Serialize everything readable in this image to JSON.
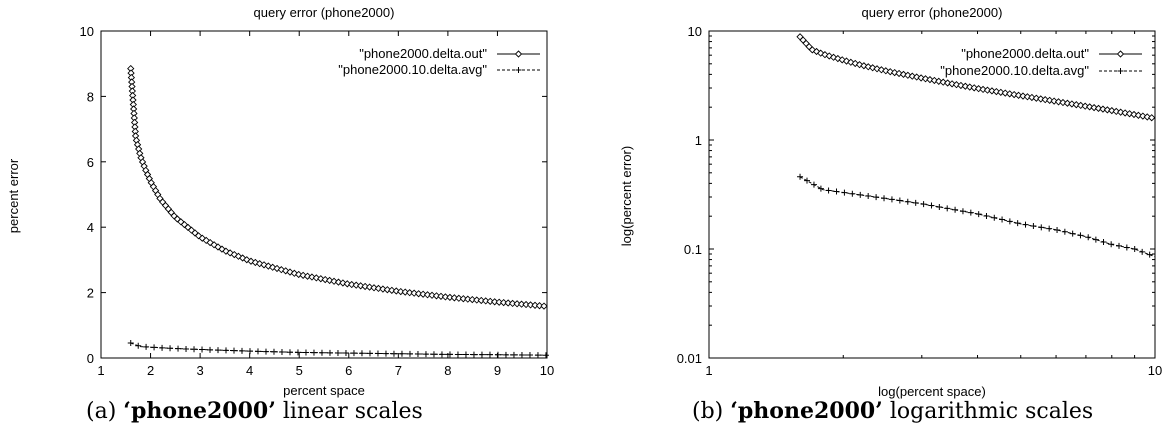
{
  "chart_data": [
    {
      "type": "line",
      "title": "query error (phone2000)",
      "xlabel": "percent space",
      "ylabel": "percent error",
      "xlim": [
        1,
        10
      ],
      "ylim": [
        0,
        10
      ],
      "xscale": "linear",
      "yscale": "linear",
      "xticks": [
        1,
        2,
        3,
        4,
        5,
        6,
        7,
        8,
        9,
        10
      ],
      "yticks": [
        0,
        2,
        4,
        6,
        8,
        10
      ],
      "legend": "top-right",
      "grid": false,
      "series": [
        {
          "name": "\"phone2000.delta.out\"",
          "marker": "diamond",
          "style": "solid",
          "x": [
            1.6,
            1.7,
            1.8,
            1.9,
            2.0,
            2.2,
            2.5,
            3.0,
            3.5,
            4.0,
            5.0,
            6.0,
            7.0,
            8.0,
            9.0,
            10.0
          ],
          "y": [
            8.85,
            6.75,
            6.15,
            5.75,
            5.4,
            4.85,
            4.3,
            3.7,
            3.28,
            2.97,
            2.55,
            2.26,
            2.04,
            1.86,
            1.71,
            1.58
          ]
        },
        {
          "name": "\"phone2000.10.delta.avg\"",
          "marker": "plus",
          "style": "dashed",
          "x": [
            1.6,
            1.7,
            1.8,
            2.0,
            2.5,
            3.0,
            4.0,
            5.0,
            6.0,
            7.0,
            8.0,
            9.0,
            10.0
          ],
          "y": [
            0.46,
            0.4,
            0.35,
            0.33,
            0.29,
            0.26,
            0.21,
            0.17,
            0.15,
            0.13,
            0.11,
            0.1,
            0.085
          ]
        }
      ]
    },
    {
      "type": "line",
      "title": "query error (phone2000)",
      "xlabel": "log(percent space)",
      "ylabel": "log(percent error)",
      "xlim": [
        1,
        10
      ],
      "ylim": [
        0.01,
        10
      ],
      "xscale": "log",
      "yscale": "log",
      "xticks": [
        1,
        10
      ],
      "yticks": [
        0.01,
        0.1,
        1,
        10
      ],
      "legend": "top-right",
      "grid": false,
      "series": [
        {
          "name": "\"phone2000.delta.out\"",
          "marker": "diamond",
          "style": "solid",
          "x": [
            1.6,
            1.7,
            1.8,
            1.9,
            2.0,
            2.2,
            2.5,
            3.0,
            3.5,
            4.0,
            5.0,
            6.0,
            7.0,
            8.0,
            9.0,
            10.0
          ],
          "y": [
            8.85,
            6.75,
            6.15,
            5.75,
            5.4,
            4.85,
            4.3,
            3.7,
            3.28,
            2.97,
            2.55,
            2.26,
            2.04,
            1.86,
            1.71,
            1.58
          ]
        },
        {
          "name": "\"phone2000.10.delta.avg\"",
          "marker": "plus",
          "style": "dashed",
          "x": [
            1.6,
            1.7,
            1.8,
            2.0,
            2.5,
            3.0,
            4.0,
            5.0,
            6.0,
            7.0,
            8.0,
            9.0,
            10.0
          ],
          "y": [
            0.46,
            0.4,
            0.35,
            0.33,
            0.29,
            0.26,
            0.21,
            0.17,
            0.15,
            0.13,
            0.11,
            0.1,
            0.085
          ]
        }
      ]
    }
  ],
  "captions": {
    "a": {
      "prefix": "(a) ",
      "name": "‘phone2000’",
      "suffix": " linear scales"
    },
    "b": {
      "prefix": "(b) ",
      "name": "‘phone2000’",
      "suffix": " logarithmic scales"
    }
  },
  "colors": {
    "ink": "#000000",
    "background": "#ffffff"
  }
}
